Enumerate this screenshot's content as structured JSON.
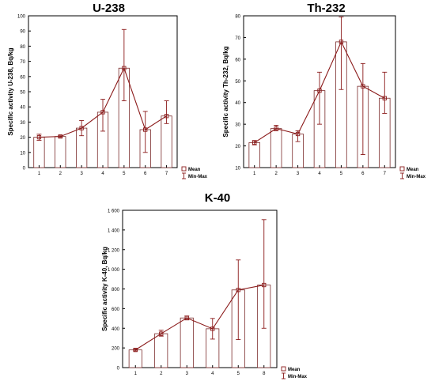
{
  "chart_data": [
    {
      "type": "bar",
      "title": "U-238",
      "ylabel": "Specific activity U-238, Bq/kg",
      "xlabel": "",
      "categories": [
        "1",
        "2",
        "3",
        "4",
        "5",
        "6",
        "7"
      ],
      "ylim": [
        0,
        100
      ],
      "yticks": [
        "0",
        "10",
        "20",
        "30",
        "40",
        "50",
        "60",
        "70",
        "80",
        "90",
        "100"
      ],
      "series": [
        {
          "name": "Mean",
          "values": [
            20,
            20.5,
            26,
            36.5,
            65.5,
            25,
            34
          ]
        },
        {
          "name": "Min-Max",
          "min": [
            18,
            20,
            21,
            24,
            44,
            10,
            29
          ],
          "max": [
            22,
            21,
            31,
            45,
            91,
            37,
            44
          ]
        }
      ],
      "legend": "bottom-right",
      "grid": false
    },
    {
      "type": "bar",
      "title": "Th-232",
      "ylabel": "Specific activity Th-232, Bq/kg",
      "xlabel": "",
      "categories": [
        "1",
        "2",
        "3",
        "4",
        "5",
        "6",
        "7"
      ],
      "ylim": [
        10,
        80
      ],
      "yticks": [
        "10",
        "20",
        "30",
        "40",
        "50",
        "60",
        "70",
        "80"
      ],
      "series": [
        {
          "name": "Mean",
          "values": [
            21.5,
            28,
            25.5,
            45.5,
            68,
            47.5,
            42
          ]
        },
        {
          "name": "Min-Max",
          "min": [
            20.5,
            27,
            22,
            30,
            46,
            16,
            35
          ],
          "max": [
            22.5,
            29.5,
            27,
            54,
            79.5,
            58,
            54
          ]
        }
      ],
      "legend": "bottom-right",
      "grid": false
    },
    {
      "type": "bar",
      "title": "K-40",
      "ylabel": "Specific activity K-40, Bq/kg",
      "xlabel": "",
      "categories": [
        "1",
        "2",
        "3",
        "4",
        "5",
        "8"
      ],
      "ylim": [
        0,
        1600
      ],
      "yticks": [
        "0",
        "200",
        "400",
        "600",
        "800",
        "1 000",
        "1 200",
        "1 400",
        "1 600"
      ],
      "series": [
        {
          "name": "Mean",
          "values": [
            180,
            345,
            505,
            395,
            790,
            840
          ]
        },
        {
          "name": "Min-Max",
          "min": [
            170,
            320,
            485,
            290,
            285,
            400
          ],
          "max": [
            190,
            380,
            525,
            500,
            1095,
            1505
          ]
        }
      ],
      "legend": "bottom-right",
      "grid": false
    }
  ],
  "colors": {
    "bar_fill": "#ffffff",
    "bar_stroke": "#7a2a2a",
    "line": "#8b1a1a",
    "marker": "#8b1a1a",
    "whisker": "#8b1a1a",
    "axis": "#000000"
  }
}
